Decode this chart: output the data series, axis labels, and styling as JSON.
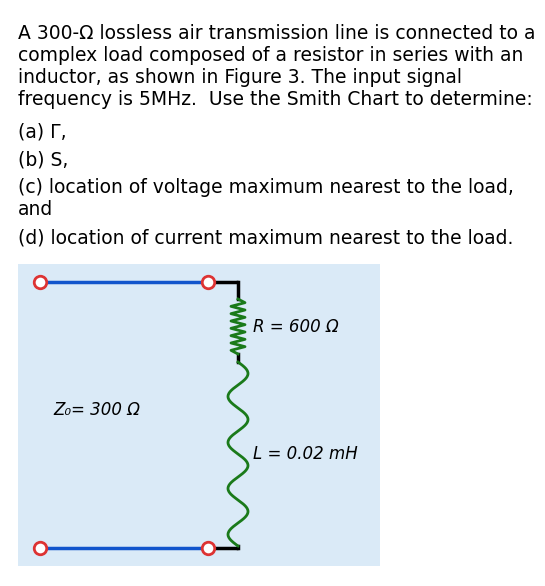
{
  "title_lines": [
    "A 300-Ω lossless air transmission line is connected to a",
    "complex load composed of a resistor in series with an",
    "inductor, as shown in Figure 3. The input signal",
    "frequency is 5MHz.  Use the Smith Chart to determine:"
  ],
  "part_a": "(a) Γ,",
  "part_b": "(b) S,",
  "part_c1": "(c) location of voltage maximum nearest to the load,",
  "part_c2": "and",
  "part_d": "(d) location of current maximum nearest to the load.",
  "circuit_bg": "#daeaf7",
  "line_color": "#1155cc",
  "node_color": "#dd3333",
  "resistor_color": "#1a7a1a",
  "inductor_color": "#1a7a1a",
  "wire_color": "#000000",
  "z0_label": "Z₀= 300 Ω",
  "r_label": "R = 600 Ω",
  "l_label": "L = 0.02 mH",
  "font_size_text": 13.5,
  "font_size_circuit": 12
}
